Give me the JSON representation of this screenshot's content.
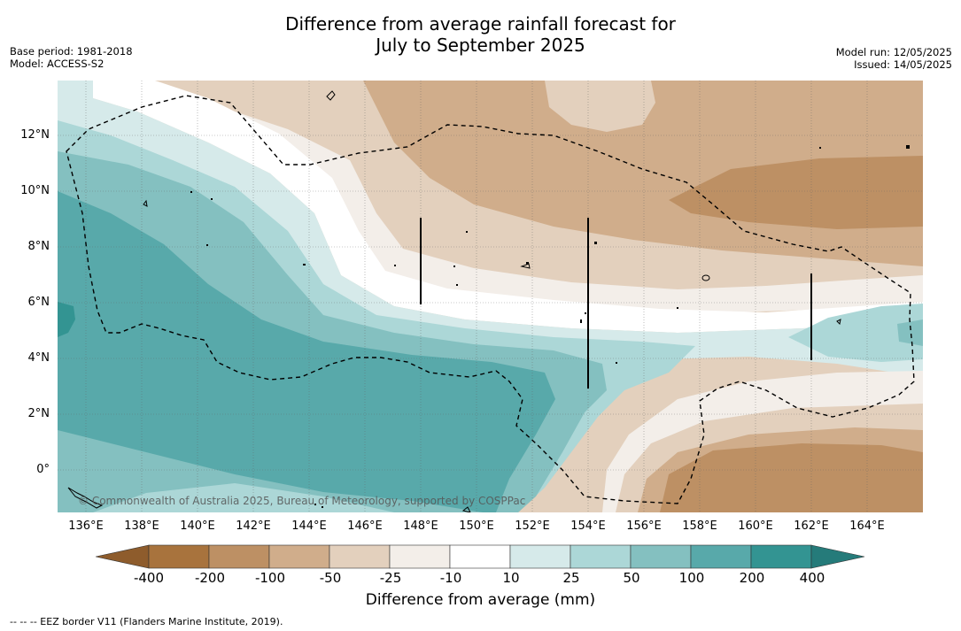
{
  "title_line1": "Difference from average rainfall forecast for",
  "title_line2": "July to September 2025",
  "base_period": "Base period: 1981-2018",
  "model": "Model: ACCESS-S2",
  "model_run": "Model run: 12/05/2025",
  "issued": "Issued: 14/05/2025",
  "x_ticks": [
    "136°E",
    "138°E",
    "140°E",
    "142°E",
    "144°E",
    "146°E",
    "148°E",
    "150°E",
    "152°E",
    "154°E",
    "156°E",
    "158°E",
    "160°E",
    "162°E",
    "164°E"
  ],
  "y_ticks": [
    "12°N",
    "10°N",
    "8°N",
    "6°N",
    "4°N",
    "2°N",
    "0°"
  ],
  "colorbar": {
    "title": "Difference from average (mm)",
    "labels": [
      "-400",
      "-200",
      "-100",
      "-50",
      "-25",
      "-10",
      "10",
      "25",
      "50",
      "100",
      "200",
      "400"
    ],
    "colors": [
      "#a8733d",
      "#bd9064",
      "#d0ad8b",
      "#e3d0bd",
      "#f3eee9",
      "#ffffff",
      "#d6eaea",
      "#acd7d7",
      "#84c0c0",
      "#58a9aa",
      "#339492"
    ],
    "under_color": "#8e5c2c",
    "over_color": "#257b7a"
  },
  "copyright": "© Commonwealth of Australia 2025, Bureau of Meteorology, supported by COSPPac",
  "footer": "--  --  -- EEZ border V11 (Flanders Marine Institute, 2019)."
}
